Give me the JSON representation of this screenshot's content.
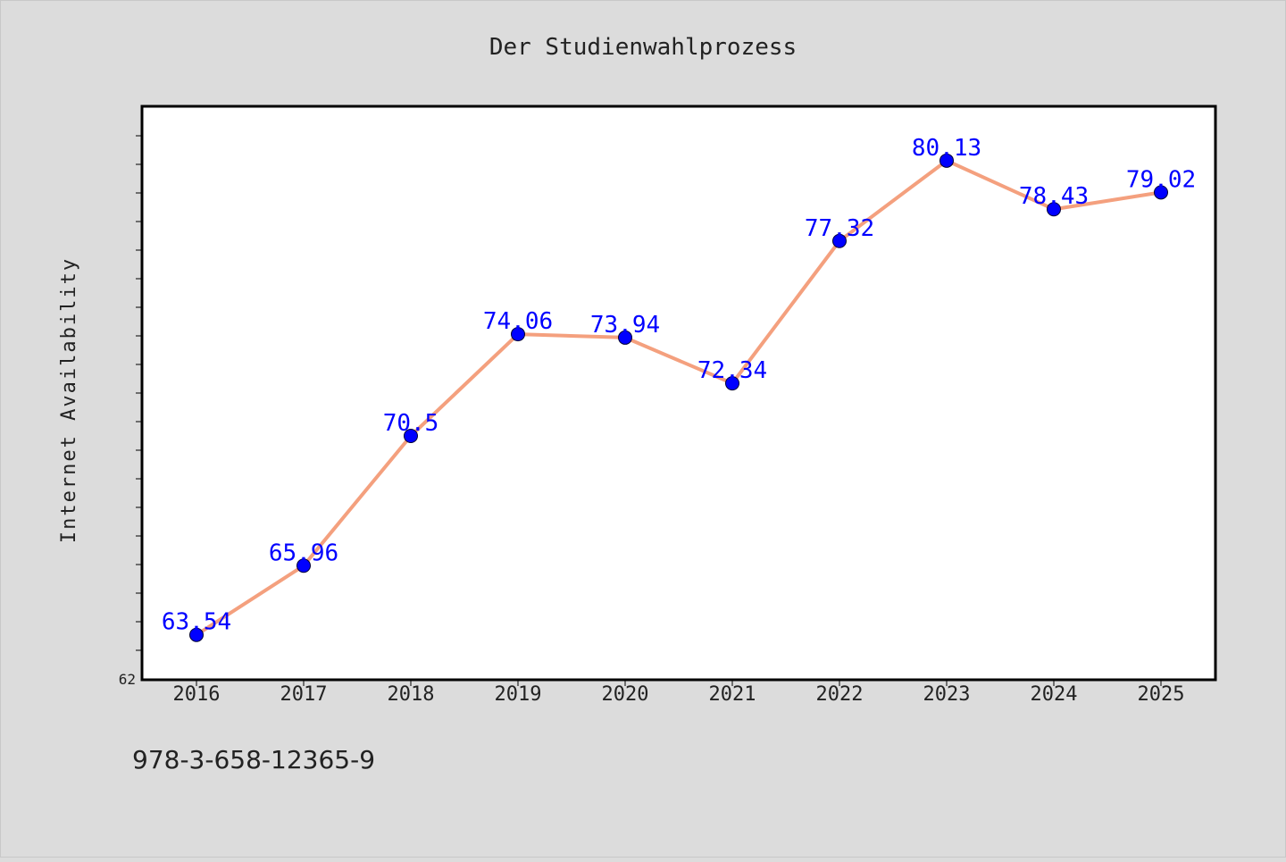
{
  "chart_data": {
    "type": "line",
    "title": "Der Studienwahlprozess",
    "xlabel": "",
    "ylabel": "Internet Availability",
    "categories": [
      "2016",
      "2017",
      "2018",
      "2019",
      "2020",
      "2021",
      "2022",
      "2023",
      "2024",
      "2025"
    ],
    "series": [
      {
        "values": [
          63.54,
          65.96,
          70.5,
          74.06,
          73.94,
          72.34,
          77.32,
          80.13,
          78.43,
          79.02
        ]
      }
    ],
    "data_labels": [
      "63.54",
      "65.96",
      "70.5",
      "74.06",
      "73.94",
      "72.34",
      "77.32",
      "80.13",
      "78.43",
      "79.02"
    ],
    "ylim": [
      62,
      82
    ],
    "y_tick_labels": [
      "62"
    ],
    "grid": false,
    "legend": "none",
    "colors": {
      "line": "#f4a07e",
      "marker": "#0000ff",
      "data_label": "#0000ff",
      "plot_background": "#ffffff",
      "figure_background": "#dcdcdc"
    }
  },
  "caption": "978-3-658-12365-9"
}
